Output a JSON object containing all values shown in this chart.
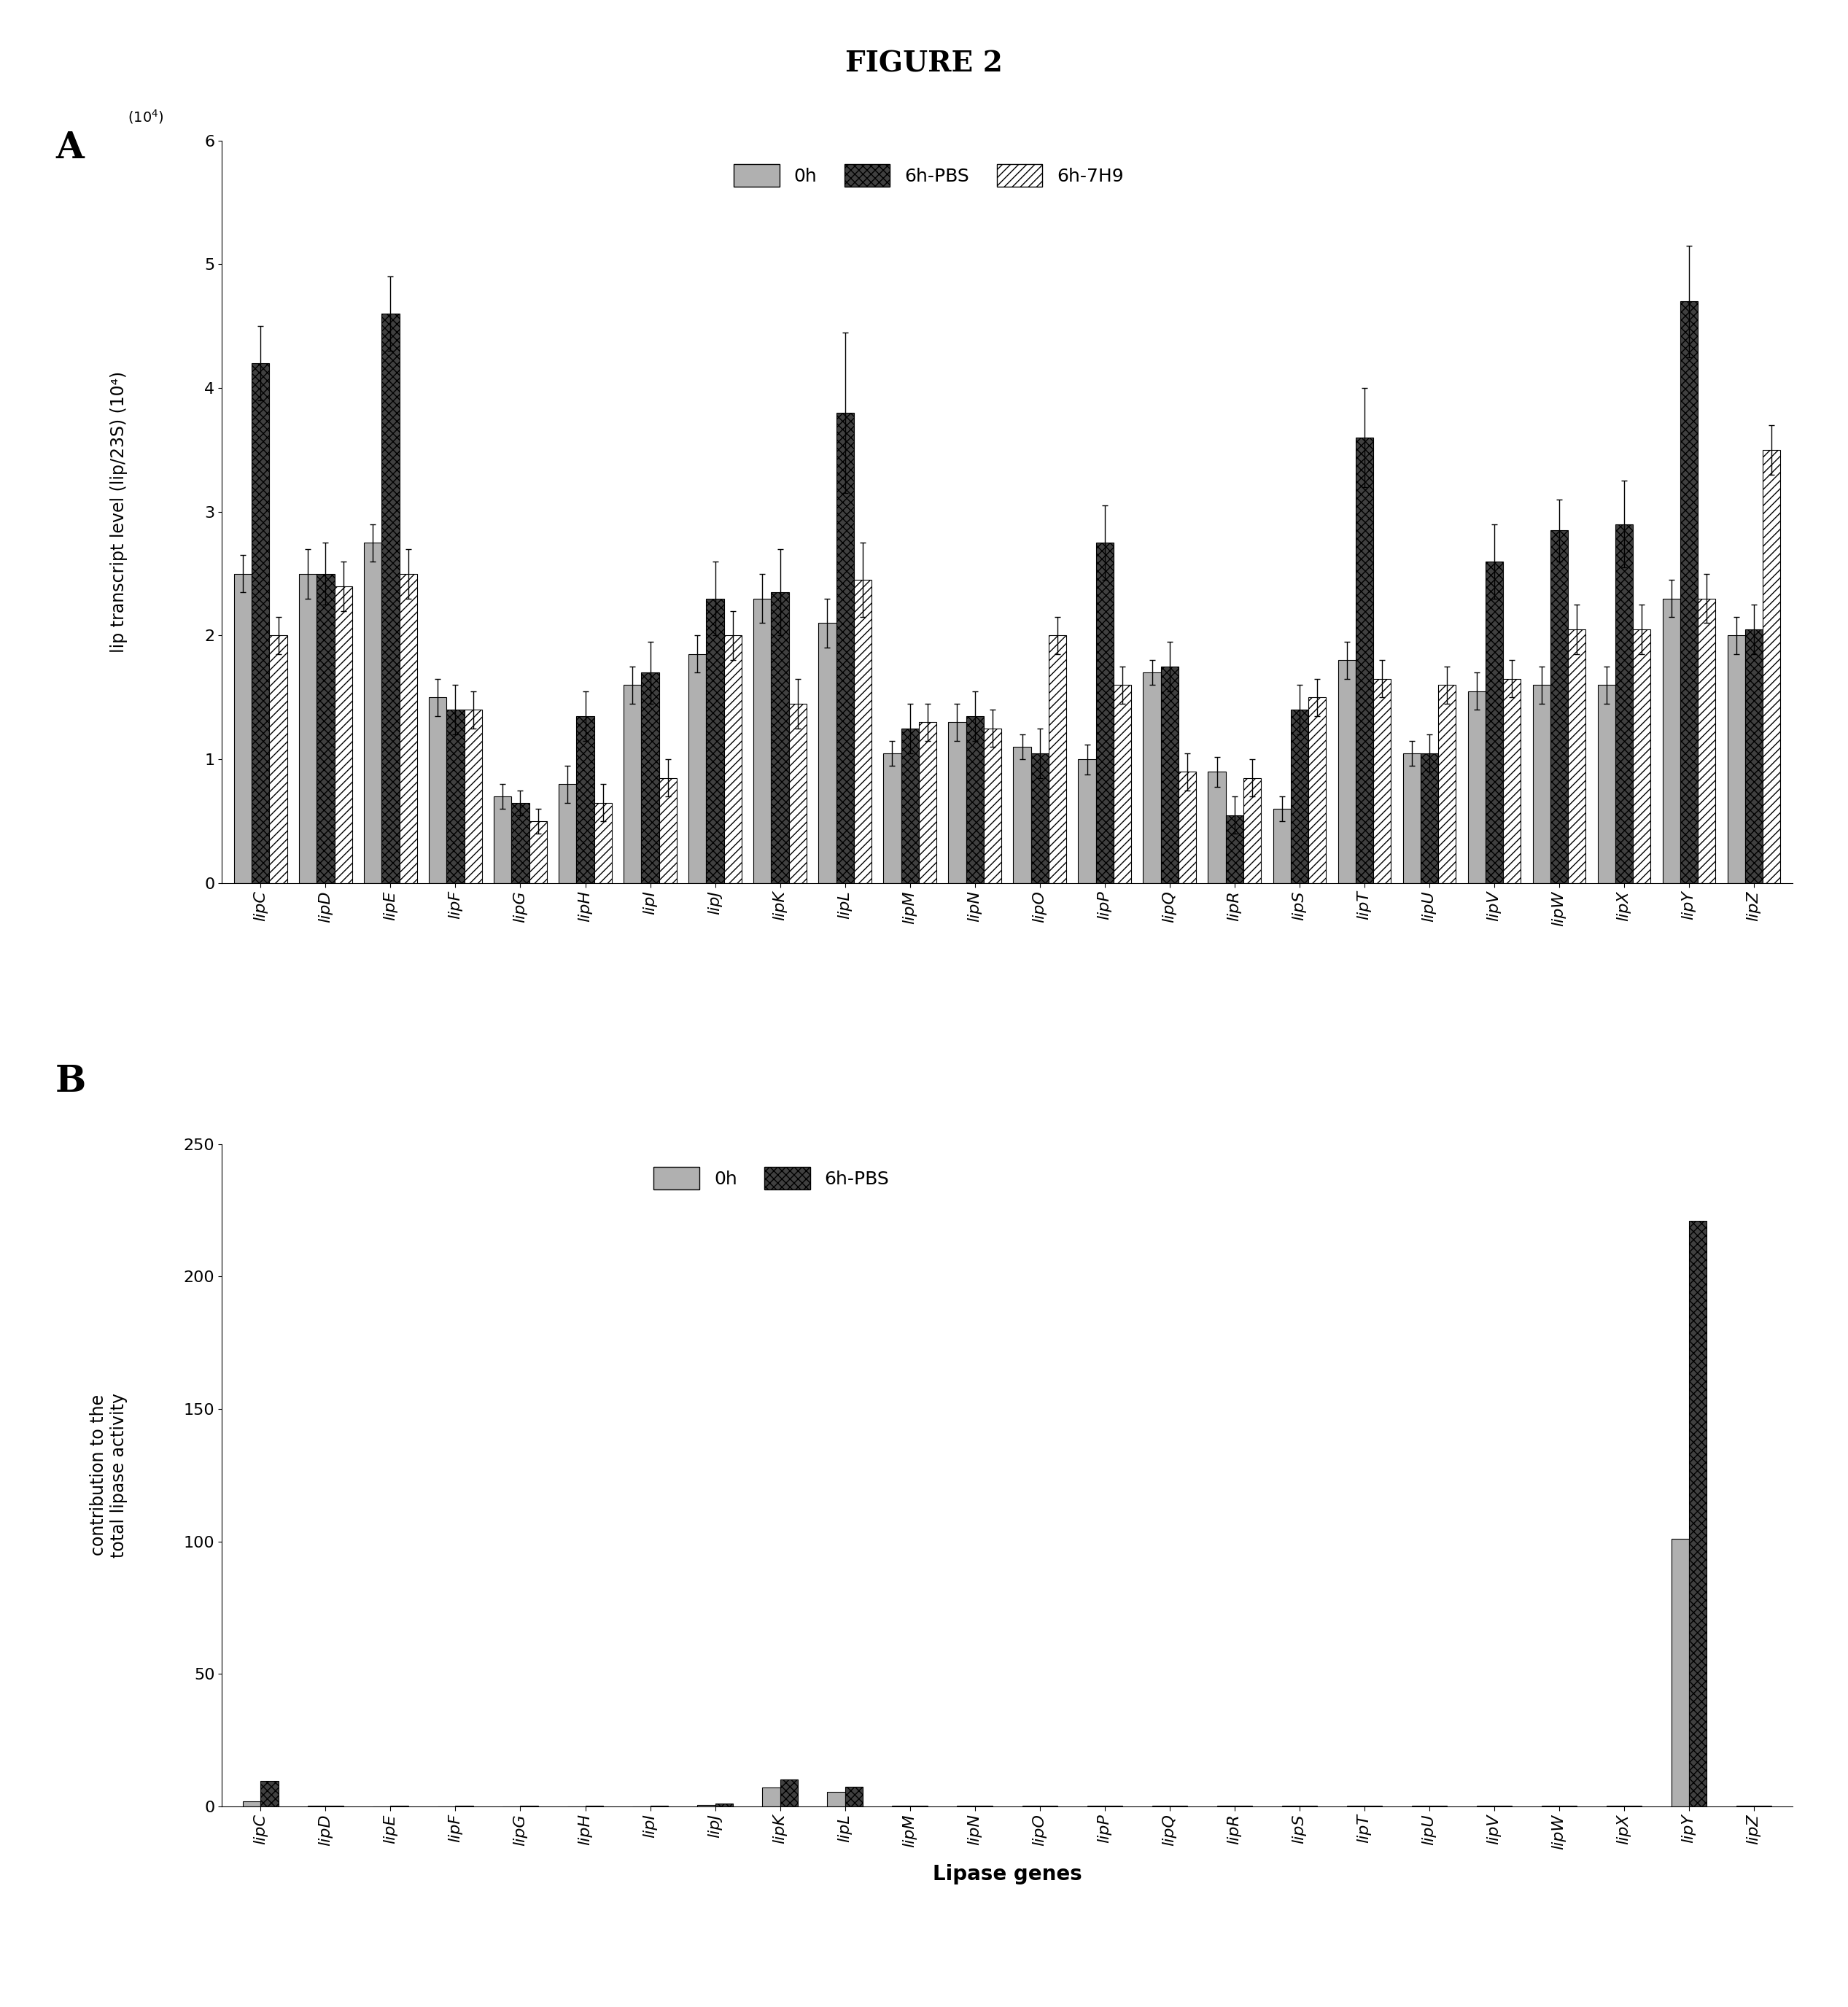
{
  "figure_title": "FIGURE 2",
  "panel_a_label": "A",
  "panel_b_label": "B",
  "xlabel_b": "Lipase genes",
  "ylabel_a": "lip transcript level (lip/23S) (10⁴)",
  "ylabel_b": "contribution to the\ntotal lipase activity",
  "genes": [
    "lipC",
    "lipD",
    "lipE",
    "lipF",
    "lipG",
    "lipH",
    "lipI",
    "lipJ",
    "lipK",
    "lipL",
    "lipM",
    "lipN",
    "lipO",
    "lipP",
    "lipQ",
    "lipR",
    "lipS",
    "lipT",
    "lipU",
    "lipV",
    "lipW",
    "lipX",
    "lipY",
    "lipZ"
  ],
  "panel_a": {
    "0h": [
      2.5,
      2.5,
      2.75,
      1.5,
      0.7,
      0.8,
      1.6,
      1.85,
      2.3,
      2.1,
      1.05,
      1.3,
      1.1,
      1.0,
      1.7,
      0.9,
      0.6,
      1.8,
      1.05,
      1.55,
      1.6,
      1.6,
      2.3,
      2.0
    ],
    "6h_PBS": [
      4.2,
      2.5,
      4.6,
      1.4,
      0.65,
      1.35,
      1.7,
      2.3,
      2.35,
      3.8,
      1.25,
      1.35,
      1.05,
      2.75,
      1.75,
      0.55,
      1.4,
      3.6,
      1.05,
      2.6,
      2.85,
      2.9,
      4.7,
      2.05
    ],
    "6h_7H9": [
      2.0,
      2.4,
      2.5,
      1.4,
      0.5,
      0.65,
      0.85,
      2.0,
      1.45,
      2.45,
      1.3,
      1.25,
      2.0,
      1.6,
      0.9,
      0.85,
      1.5,
      1.65,
      1.6,
      1.65,
      2.05,
      2.05,
      2.3,
      3.5
    ],
    "0h_err": [
      0.15,
      0.2,
      0.15,
      0.15,
      0.1,
      0.15,
      0.15,
      0.15,
      0.2,
      0.2,
      0.1,
      0.15,
      0.1,
      0.12,
      0.1,
      0.12,
      0.1,
      0.15,
      0.1,
      0.15,
      0.15,
      0.15,
      0.15,
      0.15
    ],
    "6h_PBS_err": [
      0.3,
      0.25,
      0.3,
      0.2,
      0.1,
      0.2,
      0.25,
      0.3,
      0.35,
      0.65,
      0.2,
      0.2,
      0.2,
      0.3,
      0.2,
      0.15,
      0.2,
      0.4,
      0.15,
      0.3,
      0.25,
      0.35,
      0.45,
      0.2
    ],
    "6h_7H9_err": [
      0.15,
      0.2,
      0.2,
      0.15,
      0.1,
      0.15,
      0.15,
      0.2,
      0.2,
      0.3,
      0.15,
      0.15,
      0.15,
      0.15,
      0.15,
      0.15,
      0.15,
      0.15,
      0.15,
      0.15,
      0.2,
      0.2,
      0.2,
      0.2
    ],
    "ylim": [
      0,
      6
    ],
    "yticks": [
      0,
      1,
      2,
      3,
      4,
      5,
      6
    ]
  },
  "panel_b": {
    "0h": [
      2.0,
      0.1,
      0.05,
      0.05,
      0.05,
      0.05,
      0.05,
      0.5,
      7.0,
      5.5,
      0.1,
      0.1,
      0.1,
      0.1,
      0.1,
      0.1,
      0.1,
      0.1,
      0.1,
      0.1,
      0.1,
      0.1,
      101.0,
      0.1
    ],
    "6h_PBS": [
      9.5,
      0.2,
      0.1,
      0.1,
      0.1,
      0.1,
      0.1,
      1.0,
      10.0,
      7.5,
      0.2,
      0.2,
      0.2,
      0.2,
      0.2,
      0.2,
      0.2,
      0.2,
      0.2,
      0.2,
      0.2,
      0.2,
      221.0,
      0.2
    ],
    "ylim": [
      0,
      250
    ],
    "yticks": [
      0,
      50,
      100,
      150,
      200,
      250
    ]
  },
  "color_0h": "#b0b0b0",
  "color_6h_PBS": "#404040",
  "color_6h_7H9": "#ffffff",
  "hatch_0h": "===",
  "hatch_6h_PBS": "xxx",
  "hatch_6h_7H9": "///",
  "bar_width": 0.27,
  "bar_edge_color": "#000000"
}
